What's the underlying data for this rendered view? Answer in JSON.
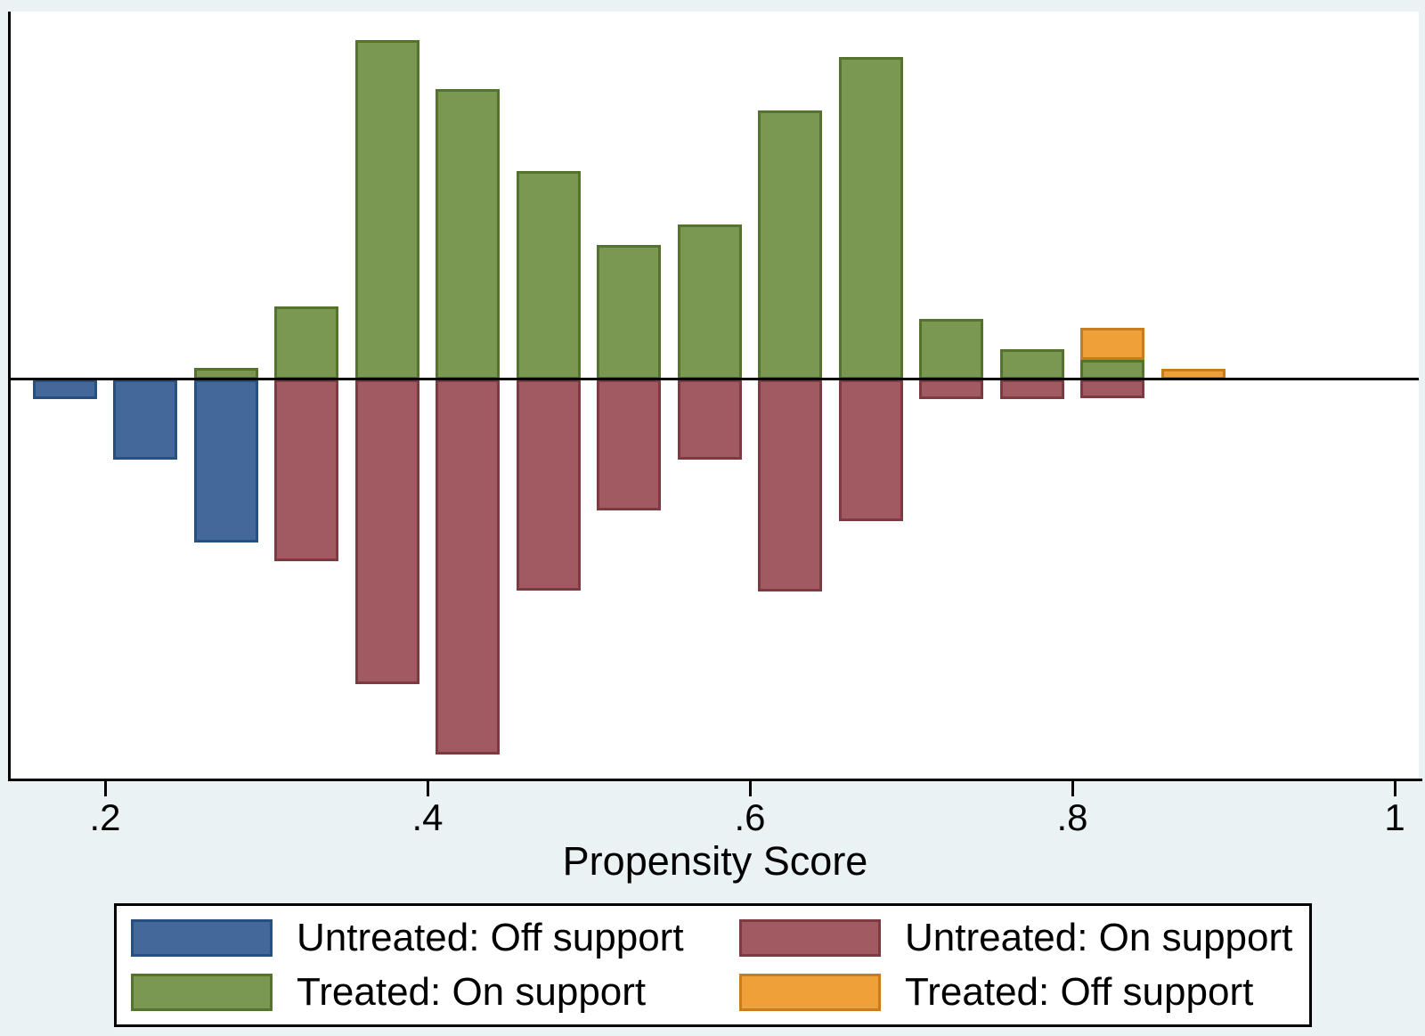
{
  "figure": {
    "xlabel": "Propensity Score",
    "background_color": "#EAF2F3",
    "plot_background_color": "#FFFFFF",
    "axis_color": "#000000"
  },
  "axis": {
    "tick_labels": [
      ".2",
      ".4",
      ".6",
      ".8",
      "1"
    ],
    "tick_values": [
      0.2,
      0.4,
      0.6,
      0.8,
      1.0
    ]
  },
  "chart_data": {
    "type": "bar",
    "subtype": "mirrored-stacked-histogram",
    "description": "Stata psgraph common-support histogram: treated observations plotted above the zero line, untreated below; on/off support stacked within each side.",
    "title": "",
    "xlabel": "Propensity Score",
    "ylabel": "",
    "y_units": "proportion of group (estimated)",
    "bin_width": 0.05,
    "x_range": [
      0.14,
      1.01
    ],
    "grid": false,
    "legend_position": "bottom",
    "series": {
      "u_off": {
        "label": "Untreated: Off support",
        "fill": "#45689B",
        "border": "#26507D",
        "side": "below"
      },
      "u_on": {
        "label": "Untreated: On support",
        "fill": "#A25A62",
        "border": "#7C3A43",
        "side": "below"
      },
      "t_on": {
        "label": "Treated: On support",
        "fill": "#7A9851",
        "border": "#55722E",
        "side": "above"
      },
      "t_off": {
        "label": "Treated: Off support",
        "fill": "#F0A039",
        "border": "#C77C1D",
        "side": "above",
        "stacked_on": "t_on"
      }
    },
    "bins": [
      {
        "x": 0.175,
        "u_off": 0.01
      },
      {
        "x": 0.225,
        "u_off": 0.041
      },
      {
        "x": 0.275,
        "t_on": 0.006,
        "u_off": 0.083
      },
      {
        "x": 0.325,
        "t_on": 0.037,
        "u_on": 0.0925
      },
      {
        "x": 0.375,
        "t_on": 0.173,
        "u_on": 0.155
      },
      {
        "x": 0.425,
        "t_on": 0.148,
        "u_on": 0.191
      },
      {
        "x": 0.475,
        "t_on": 0.106,
        "u_on": 0.1075
      },
      {
        "x": 0.525,
        "t_on": 0.0685,
        "u_on": 0.0665
      },
      {
        "x": 0.575,
        "t_on": 0.079,
        "u_on": 0.041
      },
      {
        "x": 0.625,
        "t_on": 0.137,
        "u_on": 0.108
      },
      {
        "x": 0.675,
        "t_on": 0.164,
        "u_on": 0.072
      },
      {
        "x": 0.725,
        "t_on": 0.031,
        "u_on": 0.01
      },
      {
        "x": 0.775,
        "t_on": 0.0155,
        "u_on": 0.01
      },
      {
        "x": 0.825,
        "t_on": 0.01,
        "t_off": 0.0165,
        "u_on": 0.0095
      },
      {
        "x": 0.875,
        "t_off": 0.0055
      }
    ]
  },
  "legend": {
    "rows": 2,
    "columns": 2,
    "order": [
      "u_off",
      "u_on",
      "t_on",
      "t_off"
    ]
  }
}
